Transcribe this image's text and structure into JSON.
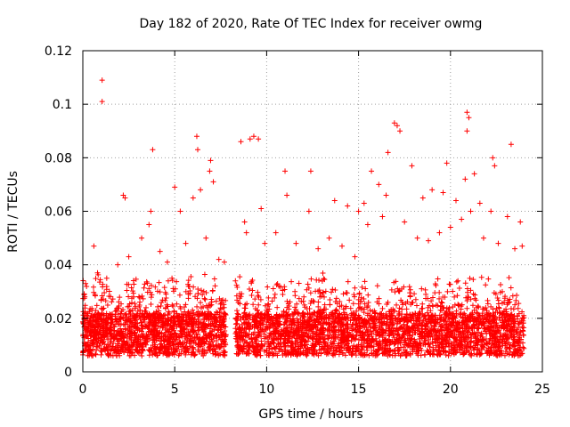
{
  "chart_data": {
    "type": "scatter",
    "title": "Day 182 of 2020, Rate Of TEC Index for receiver owmg",
    "xlabel": "GPS time / hours",
    "ylabel": "ROTI / TECUs",
    "xlim": [
      0,
      25
    ],
    "ylim": [
      0,
      0.12
    ],
    "xticks": [
      0,
      5,
      10,
      15,
      20,
      25
    ],
    "yticks": [
      0,
      0.02,
      0.04,
      0.06,
      0.08,
      0.1,
      0.12
    ],
    "grid": true,
    "marker": "plus",
    "color": "#ff0000",
    "series": [
      {
        "points": [
          [
            1.05,
            0.109
          ],
          [
            1.05,
            0.101
          ],
          [
            3.8,
            0.083
          ],
          [
            6.2,
            0.088
          ],
          [
            6.25,
            0.083
          ],
          [
            6.95,
            0.079
          ],
          [
            6.9,
            0.075
          ],
          [
            9.3,
            0.088
          ],
          [
            9.55,
            0.087
          ],
          [
            9.1,
            0.087
          ],
          [
            8.6,
            0.086
          ],
          [
            11.0,
            0.075
          ],
          [
            12.4,
            0.075
          ],
          [
            16.95,
            0.093
          ],
          [
            17.1,
            0.092
          ],
          [
            17.25,
            0.09
          ],
          [
            16.6,
            0.082
          ],
          [
            17.9,
            0.077
          ],
          [
            20.9,
            0.097
          ],
          [
            21.0,
            0.095
          ],
          [
            20.9,
            0.09
          ],
          [
            21.3,
            0.074
          ],
          [
            22.3,
            0.08
          ],
          [
            22.4,
            0.077
          ],
          [
            23.3,
            0.085
          ],
          [
            19.8,
            0.078
          ],
          [
            20.8,
            0.072
          ],
          [
            2.2,
            0.066
          ],
          [
            2.3,
            0.065
          ],
          [
            5.0,
            0.069
          ],
          [
            6.0,
            0.065
          ],
          [
            6.4,
            0.068
          ],
          [
            7.1,
            0.071
          ],
          [
            5.3,
            0.06
          ],
          [
            3.7,
            0.06
          ],
          [
            8.8,
            0.056
          ],
          [
            9.7,
            0.061
          ],
          [
            11.1,
            0.066
          ],
          [
            12.3,
            0.06
          ],
          [
            13.7,
            0.064
          ],
          [
            14.4,
            0.062
          ],
          [
            15.0,
            0.06
          ],
          [
            15.3,
            0.063
          ],
          [
            15.7,
            0.075
          ],
          [
            16.1,
            0.07
          ],
          [
            16.5,
            0.066
          ],
          [
            18.5,
            0.065
          ],
          [
            19.0,
            0.068
          ],
          [
            19.6,
            0.067
          ],
          [
            20.3,
            0.064
          ],
          [
            21.6,
            0.063
          ],
          [
            22.2,
            0.06
          ],
          [
            23.1,
            0.058
          ],
          [
            23.8,
            0.056
          ],
          [
            0.15,
            0.033
          ],
          [
            0.6,
            0.047
          ],
          [
            0.8,
            0.037
          ],
          [
            1.3,
            0.035
          ],
          [
            1.9,
            0.04
          ],
          [
            2.5,
            0.043
          ],
          [
            3.2,
            0.05
          ],
          [
            3.6,
            0.055
          ],
          [
            4.2,
            0.045
          ],
          [
            4.6,
            0.041
          ],
          [
            5.6,
            0.048
          ],
          [
            6.7,
            0.05
          ],
          [
            7.4,
            0.042
          ],
          [
            7.7,
            0.041
          ],
          [
            8.3,
            0.034
          ],
          [
            8.9,
            0.052
          ],
          [
            9.9,
            0.048
          ],
          [
            10.5,
            0.052
          ],
          [
            11.6,
            0.048
          ],
          [
            12.8,
            0.046
          ],
          [
            13.4,
            0.05
          ],
          [
            14.1,
            0.047
          ],
          [
            14.8,
            0.043
          ],
          [
            15.5,
            0.055
          ],
          [
            16.3,
            0.058
          ],
          [
            17.5,
            0.056
          ],
          [
            18.2,
            0.05
          ],
          [
            18.8,
            0.049
          ],
          [
            19.4,
            0.052
          ],
          [
            20.0,
            0.054
          ],
          [
            20.6,
            0.057
          ],
          [
            21.1,
            0.06
          ],
          [
            21.8,
            0.05
          ],
          [
            22.6,
            0.048
          ],
          [
            23.5,
            0.046
          ],
          [
            23.9,
            0.047
          ]
        ]
      }
    ]
  }
}
